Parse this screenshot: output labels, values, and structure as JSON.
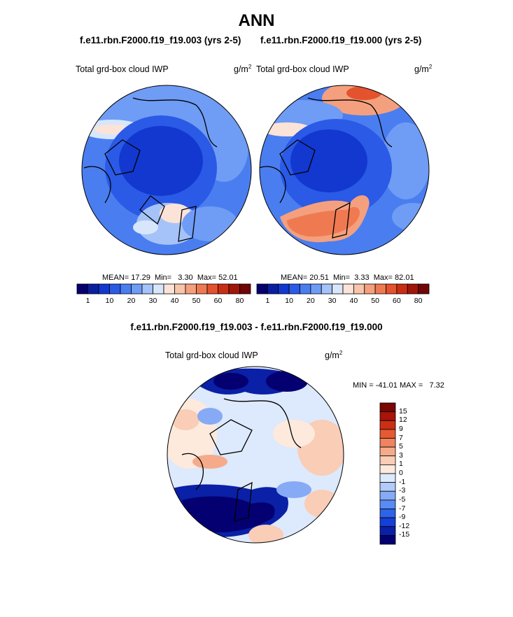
{
  "page": {
    "title": "ANN",
    "case1_title": "f.e11.rbn.F2000.f19_f19.003 (yrs 2-5)",
    "case2_title": "f.e11.rbn.F2000.f19_f19.000 (yrs 2-5)",
    "diff_title": "f.e11.rbn.F2000.f19_f19.003 - f.e11.rbn.F2000.f19_f19.000"
  },
  "panels": [
    {
      "variable": "Total grd-box cloud IWP",
      "units_base": "g/m",
      "units_exp": "2",
      "mean_label": "MEAN=",
      "mean": "17.29",
      "min_label": "Min=",
      "min": "3.30",
      "max_label": "Max=",
      "max": "52.01"
    },
    {
      "variable": "Total grd-box cloud IWP",
      "units_base": "g/m",
      "units_exp": "2",
      "mean_label": "MEAN=",
      "mean": "20.51",
      "min_label": "Min=",
      "min": "3.33",
      "max_label": "Max=",
      "max": "82.01"
    }
  ],
  "diff_panel": {
    "variable": "Total grd-box cloud IWP",
    "units_base": "g/m",
    "units_exp": "2",
    "min_label": "MIN =",
    "min": "-41.01",
    "max_label": "MAX =",
    "max": "7.32"
  },
  "colors": {
    "abs_colorbar": [
      "#05006e",
      "#0a1fa0",
      "#1238d0",
      "#2a5ae6",
      "#4a7ef0",
      "#6f9cf5",
      "#a5c3f8",
      "#d8e6fb",
      "#fbe3d8",
      "#f8c4aa",
      "#f4a07e",
      "#ef7a52",
      "#e4522e",
      "#c92e14",
      "#a2160a",
      "#700605"
    ],
    "diff_colorbar": [
      "#040071",
      "#0a20a6",
      "#1540d8",
      "#2e63ea",
      "#5a8af3",
      "#86aaf6",
      "#b2cbf9",
      "#dde9fc",
      "#fdeadd",
      "#f9cdb6",
      "#f5ab8a",
      "#ef845e",
      "#e55a34",
      "#cc2f14",
      "#a8130a",
      "#7a0503"
    ],
    "ocean_blue": "#2a5ae6"
  },
  "chart_data": [
    {
      "type": "heatmap",
      "projection": "north-polar-stereographic",
      "title": "f.e11.rbn.F2000.f19_f19.003 (yrs 2-5)",
      "variable": "Total grd-box cloud IWP",
      "units": "g/m2",
      "mean": 17.29,
      "min": 3.3,
      "max": 52.01,
      "colorbar_ticks": [
        "1",
        "10",
        "20",
        "30",
        "40",
        "50",
        "60",
        "80"
      ]
    },
    {
      "type": "heatmap",
      "projection": "north-polar-stereographic",
      "title": "f.e11.rbn.F2000.f19_f19.000 (yrs 2-5)",
      "variable": "Total grd-box cloud IWP",
      "units": "g/m2",
      "mean": 20.51,
      "min": 3.33,
      "max": 82.01,
      "colorbar_ticks": [
        "1",
        "10",
        "20",
        "30",
        "40",
        "50",
        "60",
        "80"
      ]
    },
    {
      "type": "heatmap",
      "projection": "north-polar-stereographic",
      "title": "f.e11.rbn.F2000.f19_f19.003 - f.e11.rbn.F2000.f19_f19.000",
      "variable": "Total grd-box cloud IWP",
      "units": "g/m2",
      "min": -41.01,
      "max": 7.32,
      "colorbar_ticks": [
        "15",
        "12",
        "9",
        "7",
        "5",
        "3",
        "1",
        "0",
        "-1",
        "-3",
        "-5",
        "-7",
        "-9",
        "-12",
        "-15"
      ]
    }
  ]
}
